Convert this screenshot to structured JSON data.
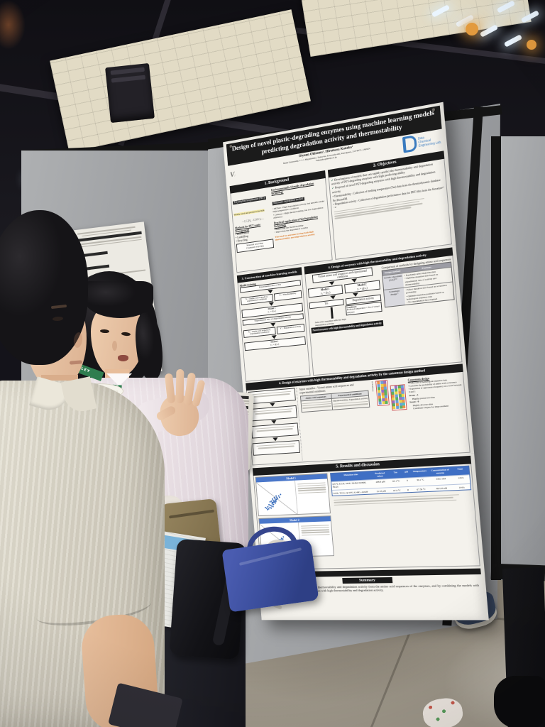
{
  "poster": {
    "title_line1": "Design of novel plastic-degrading enzymes using machine learning models",
    "title_line2": "predicting degradation activity and thermostability",
    "authors": "Oiyami Okitama¹, Hiromasa Kaneko¹",
    "affiliation": "Meiji University, 1-1-1 Higashimita, Tama-ku, Kawasaki-shi, Kanagawa, 214-8571, JAPAN",
    "email": "*hkaneko@meiji.ac.jp",
    "lab_logo": {
      "l1": "Data",
      "l2": "Chemical",
      "l3": "Engineering Lab."
    },
    "background": {
      "header": "1. Background",
      "pet_chip": "Polyethylene terephthalate (PET)",
      "pet_note": "Widely used and produced in bulk",
      "formula": "—[ C₆H₄ · COO ]ₙ—",
      "waste_title": "Methods for PET waste management",
      "waste_items": [
        "Incineration",
        "Landfilling",
        "Recycling"
      ],
      "recycle_items": [
        "Material recycling",
        "Chemical recycling"
      ],
      "eco_title": "Environmentally friendly degradation technology",
      "enzyme_chip": "Enzymatic degradation method",
      "enzyme_items": [
        "PETase : High degradation activity, but unstable under high-temperature conditions",
        "Cutinase : High thermostability, but low degradation efficiency"
      ],
      "practical_title": "Practical application of biodegradation technology",
      "practical_items": [
        "Enhancing the thermostability",
        "Improving the degradation activity"
      ],
      "need_note": "The need for enzymes having both high thermostability and degradation activity"
    },
    "objectives": {
      "header": "2. Objectives",
      "checks": [
        "Development of models that can rapidly predict the thermostability and degradation activity of PET-degrading enzymes with high predicting ability",
        "Proposal of novel PET-degrading enzymes with high thermostability and degradation activity"
      ],
      "bullets": [
        "Thermostability : Collection of melting temperature (Tm) data from the thermodynamic database ProThermDB",
        "Degradation activity : Collection of degradation performance data for PET film from the literature¹⁾⁻⁴⁾"
      ]
    },
    "construction": {
      "header": "3. Construction of machine learning models",
      "training_label": "Model training",
      "data1": "Experimental data of Tm",
      "x1": "X₁ : Amino acid sequences, experimental conditions",
      "y1": "Y₁ : Thermostability",
      "model1": "Model 1",
      "model1_eq": "y₁ = f(x₁)",
      "data2": "Experimental data of degradation activity",
      "x2": "X₂ : Amino acid sequences, experimental conditions",
      "y2": "Y₂ : Degradation activity",
      "model2": "Model 2",
      "model2_eq": "y₂ = g(x₂)"
    },
    "design": {
      "header": "4. Design of enzymes with high thermostability and degradation activity",
      "input": "Virtual amino acid sequences and experimental conditions",
      "m1": "Model 1",
      "m1eq": "y₁ = f(x₁)",
      "m2": "Model 2",
      "m2eq": "y₂ = g(x₂)",
      "tm": "Tm",
      "act": "Degradation activity",
      "select_note": "Select the enzymes with the high degradation activity",
      "cond_title": "Conditions",
      "cond_text": "Predicted temperature < Tm of virtual enzymes",
      "output": "Novel enzymes with high thermostability and degradation activity",
      "cmp_title": "Comparison of methods for designing amino acid sequences",
      "cmp_col1": "Design method",
      "cmp_col2": "Features",
      "rows": [
        {
          "method": "Genetic algorithm (GA)⁵⁾⁶⁾",
          "f1": "Randomly select mutation sites",
          "f2": "Optimize mutation sites based on experimental data of activity and thermostability",
          "f3": ""
        },
        {
          "method": "Consensus design⁷⁾",
          "f1": "Select mutation sites based on occurrence probability",
          "f2": "Optimize mutation positions based on homologous sequence data",
          "f3": "No experimental data required"
        }
      ]
    },
    "consensus": {
      "header": "4. Design of enzymes with high thermostability and degradation activity by the consensus design method",
      "input_note": "Input variables : Virtual amino acid sequences and experimental conditions",
      "tbl_col1": "Amino acid sequences",
      "tbl_col2": "Experimental conditions",
      "tbl_sub": "Thermostability, degradation activity",
      "right_title": "Consensus design",
      "right_bullets": [
        "Collection of homologous sequence data",
        "Calculate the probability of amino acid occurrence",
        "Expression of appearance frequency as a score between 0 and 1"
      ],
      "seq_label": "Sequences",
      "score1": "Score : 1",
      "score1_note": "Highly preserved sites",
      "score0": "Score : 0",
      "score0_note": "Highly diverse sites",
      "score0_note2": "Candidate targets for improvement"
    },
    "results": {
      "header": "5. Results and discussion",
      "model1": "Model 1",
      "model2": "Model 2",
      "cols": [
        "Mutation sites",
        "Predicted values",
        "Tm",
        "pH",
        "Temperature",
        "Concentration of enzyme",
        "Time"
      ],
      "rows": [
        {
          "sites": "Q57Y, F213I, S61E, S64M, D186H, F222I",
          "pred": "208.8 μM",
          "tm": "63.1 °C",
          "ph": "9",
          "temp": "30.1 °C",
          "conc": "339.5 nM",
          "time": "143 h"
        },
        {
          "sites": "S21R, T51G, Q119Y, A146G, A162P",
          "pred": "21.53 μM",
          "tm": "67.0 °C",
          "ph": "8",
          "temp": "67.56 °C",
          "conc": "497.93 nM",
          "time": "144 h"
        }
      ],
      "summary_header": "Summary",
      "summary_text": "ML models were constructed to predict the thermostability and degradation activity from the amino acid sequences of the enzymes, and by combining the models with consensus design, we proposed novel enzymes with high thermostability and degradation activity."
    }
  },
  "lanyard": {
    "brand": "WILEY"
  },
  "consensus_grid": {
    "palette": {
      "o": "#e8944a",
      "b": "#6b9fd8",
      "g": "#5cb061",
      "p": "#9a6fc0",
      "y": "#e8d24b",
      "r": "#d95f5f",
      "w": "#f2efe8",
      "t": "#52bfc4"
    },
    "group1": [
      "obp",
      "byo",
      "gob",
      "ypg",
      "bog",
      "oyb",
      "gpo",
      "byg"
    ],
    "group2": [
      "wpgb",
      "bgyp",
      "gyob",
      "obgy",
      "ygpb",
      "pbyo",
      "gobt",
      "ybgo"
    ]
  },
  "colors": {
    "poster_bg": "#f4f2ec",
    "section_band": "#1b1b1b",
    "table_header_blue": "#3f6fc4",
    "scatter_blue": "#2a62b8",
    "panel_gray": "#9c9ea1",
    "lanyard_green": "#2f7d4f",
    "tote_blue": "#3c4f9e",
    "ceiling_panel_beige": "#e2dbc5"
  }
}
